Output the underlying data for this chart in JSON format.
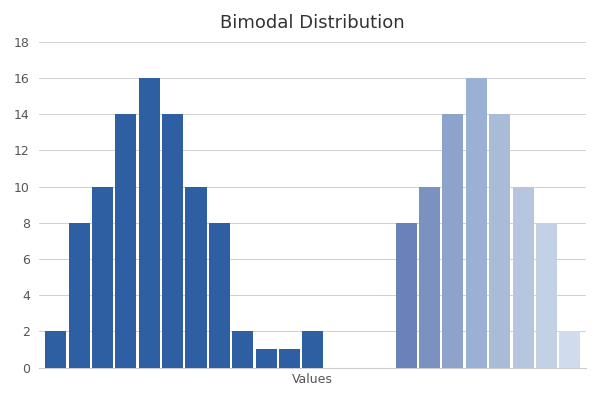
{
  "title": "Bimodal Distribution",
  "xlabel": "Values",
  "ylabel": "",
  "ylim": [
    0,
    18
  ],
  "yticks": [
    0,
    2,
    4,
    6,
    8,
    10,
    12,
    14,
    16,
    18
  ],
  "bar_values": [
    2,
    8,
    10,
    14,
    16,
    14,
    10,
    8,
    2,
    1,
    1,
    2,
    0,
    0,
    0,
    8,
    10,
    14,
    16,
    14,
    10,
    8,
    2
  ],
  "bar_colors": [
    "#2e5fa3",
    "#2e5fa3",
    "#2e5fa3",
    "#2e5fa3",
    "#2e5fa3",
    "#2e5fa3",
    "#2e5fa3",
    "#2e5fa3",
    "#2e5fa3",
    "#2e5fa3",
    "#2e5fa3",
    "#2e5fa3",
    "#ffffff",
    "#ffffff",
    "#ffffff",
    "#6a82b8",
    "#7b91c0",
    "#8ea3cc",
    "#9ab0d4",
    "#a8bcd8",
    "#b5c6de",
    "#c3d1e6",
    "#d0dced"
  ],
  "background_color": "#ffffff",
  "grid_color": "#d0d0d0",
  "title_fontsize": 13,
  "axis_fontsize": 9,
  "bar_width": 0.9
}
